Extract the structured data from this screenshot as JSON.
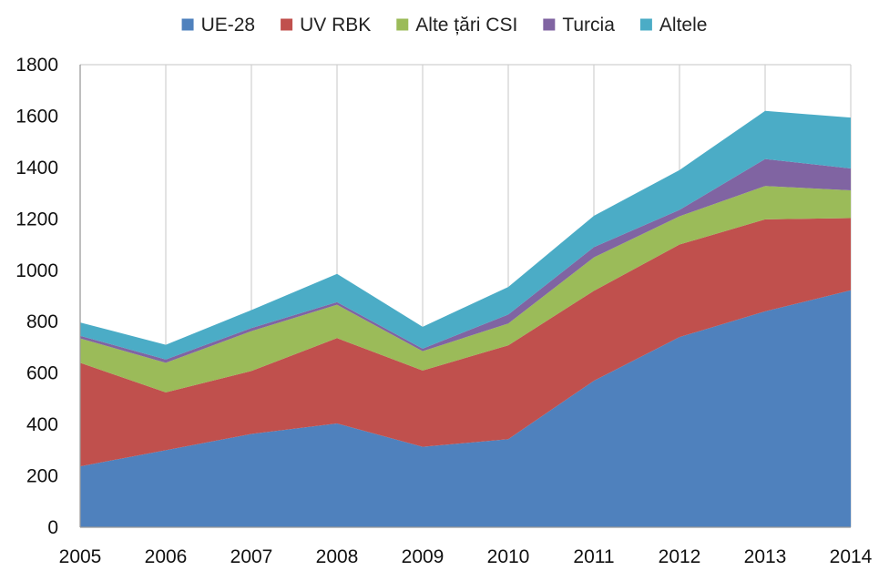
{
  "chart_data": {
    "type": "area",
    "stacked": true,
    "title": "",
    "xlabel": "",
    "ylabel": "",
    "categories": [
      "2005",
      "2006",
      "2007",
      "2008",
      "2009",
      "2010",
      "2011",
      "2012",
      "2013",
      "2014"
    ],
    "ylim": [
      0,
      1800
    ],
    "yticks": [
      0,
      200,
      400,
      600,
      800,
      1000,
      1200,
      1400,
      1600,
      1800
    ],
    "grid": "vertical",
    "legend_position": "top",
    "series": [
      {
        "name": "UE-28",
        "color": "#4f81bd",
        "values": [
          237,
          300,
          363,
          404,
          313,
          343,
          570,
          740,
          840,
          922
        ]
      },
      {
        "name": "UV RBK",
        "color": "#c0504d",
        "values": [
          403,
          225,
          245,
          332,
          297,
          365,
          350,
          360,
          358,
          281
        ]
      },
      {
        "name": "Alte țări CSI",
        "color": "#9bbb59",
        "values": [
          95,
          115,
          155,
          130,
          75,
          85,
          130,
          110,
          130,
          108
        ]
      },
      {
        "name": "Turcia",
        "color": "#8064a2",
        "values": [
          10,
          13,
          12,
          10,
          10,
          35,
          40,
          25,
          105,
          85
        ]
      },
      {
        "name": "Altele",
        "color": "#4bacc6",
        "values": [
          52,
          57,
          70,
          110,
          85,
          107,
          122,
          155,
          187,
          198
        ]
      }
    ]
  }
}
